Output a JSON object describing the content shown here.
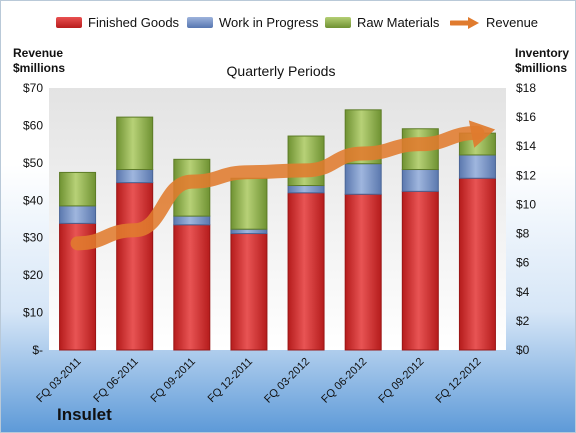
{
  "chart_data": {
    "type": "bar",
    "title": "Quarterly Periods",
    "company": "Insulet",
    "left_axis_title": [
      "Revenue",
      "$millions"
    ],
    "right_axis_title": [
      "Inventory",
      "$millions"
    ],
    "categories": [
      "FQ 03-2011",
      "FQ 06-2011",
      "FQ 09-2011",
      "FQ 12-2011",
      "FQ 03-2012",
      "FQ 06-2012",
      "FQ 09-2012",
      "FQ 12-2012"
    ],
    "stacked": true,
    "series": [
      {
        "name": "Finished Goods",
        "axis": "right",
        "color": "#d42b2b",
        "values": [
          8.7,
          11.5,
          8.6,
          8.0,
          10.8,
          10.7,
          10.9,
          11.8
        ]
      },
      {
        "name": "Work in Progress",
        "axis": "right",
        "color": "#6f8fc6",
        "values": [
          1.2,
          0.9,
          0.6,
          0.3,
          0.5,
          2.1,
          1.5,
          1.6
        ]
      },
      {
        "name": "Raw Materials",
        "axis": "right",
        "color": "#8fb04a",
        "values": [
          2.3,
          3.6,
          3.9,
          3.5,
          3.4,
          3.7,
          2.8,
          1.5
        ]
      }
    ],
    "line_series": {
      "name": "Revenue",
      "axis": "left",
      "color": "#e07b2e",
      "values": [
        28.5,
        32.0,
        45.0,
        47.5,
        48.0,
        52.5,
        55.0,
        58.0
      ]
    },
    "left_axis": {
      "min": 0,
      "max": 70,
      "step": 10,
      "tick_labels": [
        "$-",
        "$10",
        "$20",
        "$30",
        "$40",
        "$50",
        "$60",
        "$70"
      ]
    },
    "right_axis": {
      "min": 0,
      "max": 18,
      "step": 2,
      "tick_labels": [
        "$0",
        "$2",
        "$4",
        "$6",
        "$8",
        "$10",
        "$12",
        "$14",
        "$16",
        "$18"
      ]
    },
    "legend": [
      "Finished Goods",
      "Work in Progress",
      "Raw Materials",
      "Revenue"
    ],
    "legend_position": "top",
    "grid": false
  }
}
